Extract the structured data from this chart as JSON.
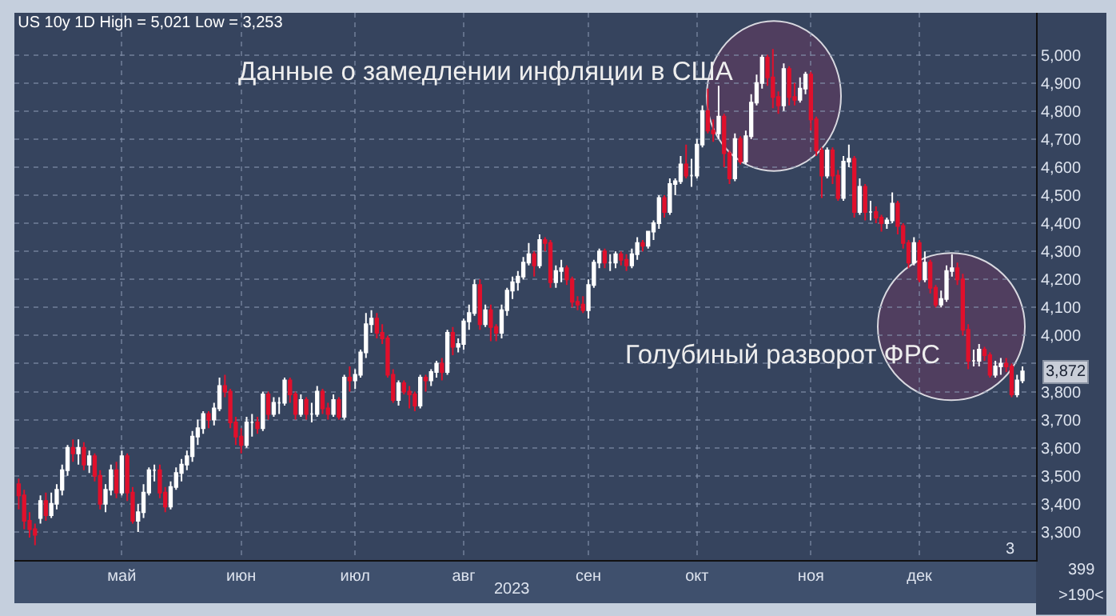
{
  "chart_data": {
    "type": "candlestick",
    "title": "US 10y 1D High = 5,021 Low = 3,253",
    "categories": [
      null,
      null,
      null,
      null,
      null,
      null,
      null,
      null,
      null,
      null,
      null,
      null,
      null,
      null,
      null,
      null,
      null,
      null,
      null,
      "май",
      null,
      null,
      null,
      null,
      null,
      null,
      null,
      null,
      null,
      null,
      null,
      null,
      null,
      null,
      null,
      null,
      null,
      null,
      null,
      null,
      null,
      "июн",
      null,
      null,
      null,
      null,
      null,
      null,
      null,
      null,
      null,
      null,
      null,
      null,
      null,
      null,
      null,
      null,
      null,
      null,
      null,
      null,
      "июл",
      null,
      null,
      null,
      null,
      null,
      null,
      null,
      null,
      null,
      null,
      null,
      null,
      null,
      null,
      null,
      null,
      null,
      null,
      null,
      "авг",
      null,
      null,
      null,
      null,
      null,
      null,
      null,
      null,
      null,
      null,
      null,
      null,
      null,
      null,
      null,
      null,
      null,
      null,
      null,
      null,
      null,
      null,
      "сен",
      null,
      null,
      null,
      null,
      null,
      null,
      null,
      null,
      null,
      null,
      null,
      null,
      null,
      null,
      null,
      null,
      null,
      null,
      null,
      "окт",
      null,
      null,
      null,
      null,
      null,
      null,
      null,
      null,
      null,
      null,
      null,
      null,
      null,
      null,
      null,
      null,
      null,
      null,
      null,
      null,
      "ноя",
      null,
      null,
      null,
      null,
      null,
      null,
      null,
      null,
      null,
      null,
      null,
      null,
      null,
      null,
      null,
      null,
      null,
      null,
      null,
      "дек",
      null,
      null,
      null,
      null,
      null,
      null,
      null,
      null,
      null,
      null,
      null,
      null,
      null,
      null,
      null,
      null,
      null,
      null,
      null
    ],
    "ohlc": [
      [
        3470,
        3490,
        3380,
        3430
      ],
      [
        3430,
        3450,
        3310,
        3340
      ],
      [
        3340,
        3370,
        3280,
        3310
      ],
      [
        3310,
        3330,
        3253,
        3290
      ],
      [
        3350,
        3430,
        3330,
        3410
      ],
      [
        3410,
        3440,
        3340,
        3360
      ],
      [
        3360,
        3440,
        3350,
        3400
      ],
      [
        3400,
        3470,
        3380,
        3450
      ],
      [
        3450,
        3540,
        3430,
        3520
      ],
      [
        3520,
        3610,
        3500,
        3600
      ],
      [
        3600,
        3630,
        3550,
        3580
      ],
      [
        3580,
        3630,
        3540,
        3600
      ],
      [
        3600,
        3620,
        3520,
        3540
      ],
      [
        3540,
        3590,
        3510,
        3570
      ],
      [
        3570,
        3580,
        3480,
        3500
      ],
      [
        3500,
        3520,
        3380,
        3400
      ],
      [
        3400,
        3470,
        3370,
        3450
      ],
      [
        3450,
        3540,
        3430,
        3520
      ],
      [
        3520,
        3550,
        3420,
        3440
      ],
      [
        3440,
        3590,
        3430,
        3570
      ],
      [
        3570,
        3580,
        3410,
        3440
      ],
      [
        3440,
        3460,
        3330,
        3340
      ],
      [
        3340,
        3400,
        3300,
        3370
      ],
      [
        3370,
        3470,
        3350,
        3440
      ],
      [
        3440,
        3530,
        3430,
        3520
      ],
      [
        3520,
        3540,
        3480,
        3520
      ],
      [
        3520,
        3540,
        3420,
        3440
      ],
      [
        3440,
        3460,
        3370,
        3390
      ],
      [
        3390,
        3480,
        3380,
        3460
      ],
      [
        3460,
        3530,
        3450,
        3510
      ],
      [
        3510,
        3560,
        3480,
        3540
      ],
      [
        3540,
        3590,
        3520,
        3570
      ],
      [
        3570,
        3660,
        3550,
        3640
      ],
      [
        3640,
        3700,
        3610,
        3670
      ],
      [
        3670,
        3730,
        3650,
        3720
      ],
      [
        3720,
        3730,
        3670,
        3700
      ],
      [
        3700,
        3760,
        3680,
        3740
      ],
      [
        3740,
        3850,
        3730,
        3820
      ],
      [
        3820,
        3860,
        3780,
        3800
      ],
      [
        3800,
        3810,
        3670,
        3690
      ],
      [
        3690,
        3710,
        3610,
        3640
      ],
      [
        3640,
        3670,
        3580,
        3610
      ],
      [
        3610,
        3710,
        3600,
        3690
      ],
      [
        3690,
        3720,
        3640,
        3690
      ],
      [
        3690,
        3710,
        3650,
        3670
      ],
      [
        3670,
        3800,
        3660,
        3790
      ],
      [
        3790,
        3800,
        3700,
        3720
      ],
      [
        3720,
        3780,
        3710,
        3760
      ],
      [
        3760,
        3780,
        3720,
        3760
      ],
      [
        3760,
        3850,
        3750,
        3840
      ],
      [
        3840,
        3850,
        3760,
        3790
      ],
      [
        3790,
        3800,
        3700,
        3720
      ],
      [
        3720,
        3790,
        3710,
        3770
      ],
      [
        3770,
        3780,
        3700,
        3720
      ],
      [
        3720,
        3760,
        3690,
        3720
      ],
      [
        3720,
        3820,
        3710,
        3800
      ],
      [
        3800,
        3810,
        3720,
        3740
      ],
      [
        3740,
        3760,
        3700,
        3720
      ],
      [
        3720,
        3790,
        3710,
        3770
      ],
      [
        3770,
        3780,
        3700,
        3710
      ],
      [
        3710,
        3860,
        3700,
        3850
      ],
      [
        3850,
        3890,
        3800,
        3840
      ],
      [
        3840,
        3880,
        3810,
        3860
      ],
      [
        3860,
        3950,
        3850,
        3940
      ],
      [
        3940,
        4080,
        3920,
        4040
      ],
      [
        4040,
        4090,
        4010,
        4060
      ],
      [
        4060,
        4080,
        3990,
        4010
      ],
      [
        4010,
        4040,
        3970,
        3990
      ],
      [
        3990,
        4000,
        3850,
        3860
      ],
      [
        3860,
        3880,
        3760,
        3770
      ],
      [
        3770,
        3840,
        3750,
        3830
      ],
      [
        3830,
        3840,
        3790,
        3800
      ],
      [
        3800,
        3820,
        3740,
        3790
      ],
      [
        3790,
        3800,
        3730,
        3750
      ],
      [
        3750,
        3860,
        3740,
        3850
      ],
      [
        3850,
        3860,
        3800,
        3840
      ],
      [
        3840,
        3880,
        3820,
        3870
      ],
      [
        3870,
        3910,
        3850,
        3900
      ],
      [
        3900,
        3920,
        3840,
        3870
      ],
      [
        3870,
        4020,
        3860,
        4010
      ],
      [
        4010,
        4030,
        3930,
        3960
      ],
      [
        3960,
        3990,
        3940,
        3970
      ],
      [
        3970,
        4060,
        3950,
        4050
      ],
      [
        4050,
        4110,
        4020,
        4080
      ],
      [
        4080,
        4200,
        4070,
        4180
      ],
      [
        4180,
        4200,
        4020,
        4040
      ],
      [
        4040,
        4110,
        4030,
        4090
      ],
      [
        4090,
        4110,
        3980,
        4030
      ],
      [
        4030,
        4040,
        3980,
        4010
      ],
      [
        4010,
        4110,
        3990,
        4090
      ],
      [
        4090,
        4170,
        4070,
        4160
      ],
      [
        4160,
        4210,
        4130,
        4190
      ],
      [
        4190,
        4230,
        4160,
        4210
      ],
      [
        4210,
        4280,
        4200,
        4260
      ],
      [
        4260,
        4330,
        4250,
        4290
      ],
      [
        4290,
        4300,
        4210,
        4250
      ],
      [
        4250,
        4360,
        4240,
        4340
      ],
      [
        4340,
        4350,
        4300,
        4330
      ],
      [
        4330,
        4340,
        4170,
        4190
      ],
      [
        4190,
        4250,
        4170,
        4230
      ],
      [
        4230,
        4270,
        4190,
        4240
      ],
      [
        4240,
        4250,
        4180,
        4200
      ],
      [
        4200,
        4210,
        4100,
        4120
      ],
      [
        4120,
        4140,
        4090,
        4110
      ],
      [
        4110,
        4140,
        4080,
        4090
      ],
      [
        4090,
        4200,
        4060,
        4180
      ],
      [
        4180,
        4270,
        4170,
        4260
      ],
      [
        4260,
        4310,
        4240,
        4300
      ],
      [
        4300,
        4310,
        4240,
        4260
      ],
      [
        4260,
        4290,
        4230,
        4260
      ],
      [
        4260,
        4300,
        4240,
        4290
      ],
      [
        4290,
        4300,
        4250,
        4270
      ],
      [
        4270,
        4290,
        4230,
        4250
      ],
      [
        4250,
        4310,
        4240,
        4290
      ],
      [
        4290,
        4350,
        4270,
        4330
      ],
      [
        4330,
        4340,
        4300,
        4320
      ],
      [
        4320,
        4370,
        4310,
        4370
      ],
      [
        4370,
        4410,
        4340,
        4400
      ],
      [
        4400,
        4500,
        4380,
        4490
      ],
      [
        4490,
        4500,
        4420,
        4440
      ],
      [
        4440,
        4560,
        4430,
        4540
      ],
      [
        4540,
        4560,
        4500,
        4550
      ],
      [
        4550,
        4640,
        4540,
        4610
      ],
      [
        4610,
        4680,
        4560,
        4570
      ],
      [
        4570,
        4630,
        4530,
        4570
      ],
      [
        4570,
        4700,
        4560,
        4680
      ],
      [
        4680,
        4820,
        4670,
        4800
      ],
      [
        4800,
        4880,
        4720,
        4730
      ],
      [
        4730,
        4770,
        4690,
        4720
      ],
      [
        4720,
        4890,
        4700,
        4780
      ],
      [
        4780,
        4790,
        4600,
        4650
      ],
      [
        4650,
        4660,
        4540,
        4560
      ],
      [
        4560,
        4720,
        4550,
        4700
      ],
      [
        4700,
        4710,
        4610,
        4620
      ],
      [
        4620,
        4730,
        4610,
        4710
      ],
      [
        4710,
        4860,
        4700,
        4830
      ],
      [
        4830,
        4930,
        4820,
        4900
      ],
      [
        4900,
        5000,
        4880,
        4990
      ],
      [
        4990,
        5000,
        4890,
        4920
      ],
      [
        4920,
        5021,
        4810,
        4850
      ],
      [
        4850,
        4870,
        4790,
        4820
      ],
      [
        4820,
        4970,
        4800,
        4950
      ],
      [
        4950,
        4960,
        4820,
        4850
      ],
      [
        4850,
        4900,
        4820,
        4840
      ],
      [
        4840,
        4920,
        4830,
        4880
      ],
      [
        4880,
        4940,
        4860,
        4930
      ],
      [
        4930,
        4940,
        4730,
        4770
      ],
      [
        4770,
        4780,
        4640,
        4660
      ],
      [
        4660,
        4670,
        4490,
        4570
      ],
      [
        4570,
        4670,
        4560,
        4660
      ],
      [
        4660,
        4670,
        4540,
        4570
      ],
      [
        4570,
        4590,
        4480,
        4490
      ],
      [
        4490,
        4640,
        4480,
        4620
      ],
      [
        4620,
        4680,
        4600,
        4630
      ],
      [
        4630,
        4640,
        4420,
        4440
      ],
      [
        4440,
        4560,
        4430,
        4530
      ],
      [
        4530,
        4540,
        4410,
        4440
      ],
      [
        4440,
        4480,
        4410,
        4440
      ],
      [
        4440,
        4460,
        4400,
        4420
      ],
      [
        4420,
        4430,
        4370,
        4400
      ],
      [
        4400,
        4420,
        4380,
        4410
      ],
      [
        4410,
        4510,
        4400,
        4470
      ],
      [
        4470,
        4480,
        4360,
        4390
      ],
      [
        4390,
        4400,
        4310,
        4330
      ],
      [
        4330,
        4340,
        4240,
        4260
      ],
      [
        4260,
        4350,
        4250,
        4330
      ],
      [
        4330,
        4340,
        4190,
        4200
      ],
      [
        4200,
        4300,
        4190,
        4260
      ],
      [
        4260,
        4270,
        4150,
        4170
      ],
      [
        4170,
        4180,
        4100,
        4110
      ],
      [
        4110,
        4160,
        4100,
        4130
      ],
      [
        4130,
        4250,
        4120,
        4230
      ],
      [
        4230,
        4290,
        4210,
        4240
      ],
      [
        4240,
        4260,
        4180,
        4200
      ],
      [
        4200,
        4220,
        4000,
        4020
      ],
      [
        4020,
        4040,
        3880,
        3910
      ],
      [
        3910,
        3950,
        3890,
        3910
      ],
      [
        3910,
        3970,
        3890,
        3950
      ],
      [
        3950,
        3960,
        3910,
        3930
      ],
      [
        3930,
        3940,
        3850,
        3860
      ],
      [
        3860,
        3910,
        3850,
        3890
      ],
      [
        3890,
        3920,
        3860,
        3900
      ],
      [
        3900,
        3920,
        3870,
        3890
      ],
      [
        3890,
        3900,
        3780,
        3790
      ],
      [
        3790,
        3860,
        3780,
        3840
      ],
      [
        3840,
        3890,
        3830,
        3872
      ]
    ],
    "colors": [
      "#e0102c",
      "#e0102c",
      "#e0102c",
      "#e0102c",
      "#ffffff",
      "#e0102c",
      "#ffffff",
      "#ffffff",
      "#ffffff",
      "#ffffff",
      "#e0102c",
      "#ffffff",
      "#e0102c",
      "#ffffff",
      "#e0102c",
      "#e0102c",
      "#ffffff",
      "#ffffff",
      "#e0102c",
      "#ffffff",
      "#e0102c",
      "#e0102c",
      "#ffffff",
      "#ffffff",
      "#ffffff",
      "#ffffff",
      "#e0102c",
      "#e0102c",
      "#ffffff",
      "#ffffff",
      "#ffffff",
      "#ffffff",
      "#ffffff",
      "#ffffff",
      "#ffffff",
      "#e0102c",
      "#ffffff",
      "#ffffff",
      "#e0102c",
      "#e0102c",
      "#e0102c",
      "#e0102c",
      "#ffffff",
      "#ffffff",
      "#e0102c",
      "#ffffff",
      "#e0102c",
      "#ffffff",
      "#ffffff",
      "#ffffff",
      "#e0102c",
      "#e0102c",
      "#ffffff",
      "#e0102c",
      "#ffffff",
      "#ffffff",
      "#e0102c",
      "#e0102c",
      "#ffffff",
      "#e0102c",
      "#ffffff",
      "#e0102c",
      "#ffffff",
      "#ffffff",
      "#ffffff",
      "#ffffff",
      "#e0102c",
      "#e0102c",
      "#e0102c",
      "#e0102c",
      "#ffffff",
      "#e0102c",
      "#e0102c",
      "#e0102c",
      "#ffffff",
      "#e0102c",
      "#ffffff",
      "#ffffff",
      "#e0102c",
      "#ffffff",
      "#e0102c",
      "#ffffff",
      "#ffffff",
      "#ffffff",
      "#ffffff",
      "#e0102c",
      "#ffffff",
      "#e0102c",
      "#e0102c",
      "#ffffff",
      "#ffffff",
      "#ffffff",
      "#ffffff",
      "#ffffff",
      "#ffffff",
      "#e0102c",
      "#ffffff",
      "#e0102c",
      "#e0102c",
      "#ffffff",
      "#ffffff",
      "#e0102c",
      "#e0102c",
      "#e0102c",
      "#e0102c",
      "#ffffff",
      "#ffffff",
      "#ffffff",
      "#e0102c",
      "#ffffff",
      "#ffffff",
      "#e0102c",
      "#e0102c",
      "#ffffff",
      "#ffffff",
      "#e0102c",
      "#ffffff",
      "#ffffff",
      "#ffffff",
      "#e0102c",
      "#ffffff",
      "#ffffff",
      "#ffffff",
      "#e0102c",
      "#ffffff",
      "#ffffff",
      "#ffffff",
      "#e0102c",
      "#e0102c",
      "#ffffff",
      "#e0102c",
      "#e0102c",
      "#ffffff",
      "#e0102c",
      "#ffffff",
      "#ffffff",
      "#ffffff",
      "#ffffff",
      "#e0102c",
      "#e0102c",
      "#e0102c",
      "#ffffff",
      "#e0102c",
      "#e0102c",
      "#ffffff",
      "#ffffff",
      "#e0102c",
      "#e0102c",
      "#e0102c",
      "#ffffff",
      "#e0102c",
      "#e0102c",
      "#ffffff",
      "#ffffff",
      "#e0102c",
      "#ffffff",
      "#e0102c",
      "#ffffff",
      "#e0102c",
      "#e0102c",
      "#ffffff",
      "#ffffff",
      "#e0102c",
      "#e0102c",
      "#e0102c",
      "#ffffff",
      "#e0102c",
      "#ffffff",
      "#e0102c",
      "#e0102c",
      "#ffffff",
      "#ffffff",
      "#ffffff",
      "#e0102c",
      "#e0102c",
      "#e0102c",
      "#ffffff",
      "#ffffff",
      "#e0102c",
      "#e0102c",
      "#ffffff",
      "#ffffff",
      "#e0102c",
      "#e0102c",
      "#ffffff",
      "#ffffff"
    ],
    "ylim": [
      3200,
      5150
    ],
    "yticks": [
      {
        "value": 3300,
        "label": "3,300"
      },
      {
        "value": 3400,
        "label": "3,400"
      },
      {
        "value": 3500,
        "label": "3,500"
      },
      {
        "value": 3600,
        "label": "3,600"
      },
      {
        "value": 3700,
        "label": "3,700"
      },
      {
        "value": 3800,
        "label": "3,800"
      },
      {
        "value": 3900,
        "label": null
      },
      {
        "value": 4000,
        "label": "4,000"
      },
      {
        "value": 4100,
        "label": "4,100"
      },
      {
        "value": 4200,
        "label": "4,200"
      },
      {
        "value": 4300,
        "label": "4,300"
      },
      {
        "value": 4400,
        "label": "4,400"
      },
      {
        "value": 4500,
        "label": "4,500"
      },
      {
        "value": 4600,
        "label": "4,600"
      },
      {
        "value": 4700,
        "label": "4,700"
      },
      {
        "value": 4800,
        "label": "4,800"
      },
      {
        "value": 4900,
        "label": "4,900"
      },
      {
        "value": 5000,
        "label": "5,000"
      }
    ],
    "grid": true,
    "annotations": [
      "Данные о замедлении инфляции в США",
      "Голубиный разворот ФРС",
      "3,872",
      "2023",
      "3",
      "399",
      ">190<"
    ]
  }
}
